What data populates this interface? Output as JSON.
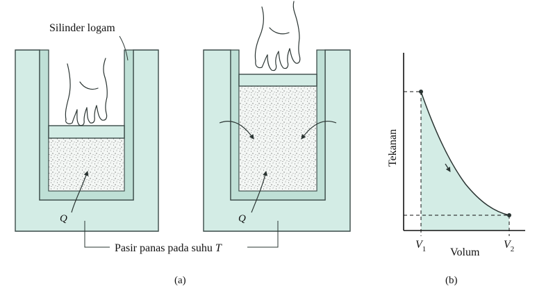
{
  "labels": {
    "cylinder": "Silinder logam",
    "sand": "Pasir panas pada suhu",
    "sand_var": "T",
    "heat_left": "Q",
    "heat_right": "Q",
    "panel_a": "(a)",
    "panel_b": "(b)"
  },
  "graph": {
    "ylabel": "Tekanan",
    "xlabel": "Volum",
    "v1_main": "V",
    "v1_sub": "1",
    "v2_main": "V",
    "v2_sub": "2"
  },
  "colors": {
    "fill": "#d3ece5",
    "stroke": "#3a4a48",
    "dots": "#555555"
  }
}
